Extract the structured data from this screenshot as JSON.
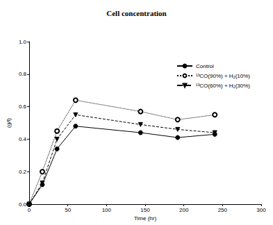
{
  "chart_data": {
    "type": "line",
    "title": "Cell concentration",
    "x_label": "Time (hr)",
    "y_label": "(g/l)",
    "x": [
      0,
      17,
      36,
      60,
      144,
      192,
      240
    ],
    "series": [
      {
        "name": "Control",
        "color": "#000000",
        "marker": "circle",
        "line_style": "solid",
        "values": [
          0,
          0.12,
          0.34,
          0.48,
          0.44,
          0.41,
          0.43
        ]
      },
      {
        "name": "¹³CO(90%) + H₂(10%)",
        "color": "#000000",
        "marker": "open_circle",
        "line_style": "dotted",
        "values": [
          0,
          0.2,
          0.45,
          0.64,
          0.57,
          0.52,
          0.55
        ]
      },
      {
        "name": "¹³CO(60%) + H₂(30%)",
        "color": "#000000",
        "marker": "triangle_down",
        "line_style": "dashed",
        "values": [
          0,
          0.13,
          0.4,
          0.55,
          0.49,
          0.46,
          0.44
        ]
      }
    ],
    "xlim": [
      0,
      300
    ],
    "xticks": [
      0,
      50,
      100,
      150,
      200,
      250,
      300
    ],
    "ylim": [
      0,
      1
    ],
    "yticks": [
      {
        "value": 0,
        "label": "0.0"
      },
      0.2,
      0.4,
      0.6,
      0.8,
      {
        "value": 1,
        "label": "1.0"
      }
    ],
    "grid": false,
    "legend": "upper right"
  }
}
